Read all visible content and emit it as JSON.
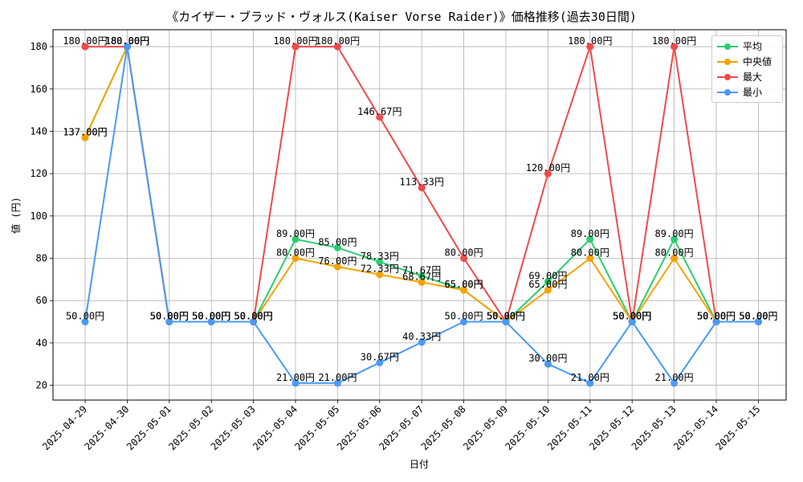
{
  "chart_data": {
    "type": "line",
    "title": "《カイザー・ブラッド・ヴォルス(Kaiser Vorse Raider)》価格推移(過去30日間)",
    "xlabel": "日付",
    "ylabel": "値 (円)",
    "ylim": [
      13,
      188
    ],
    "yticks": [
      20,
      40,
      60,
      80,
      100,
      120,
      140,
      160,
      180
    ],
    "grid": true,
    "legend_position": "top-right",
    "label_suffix": "円",
    "categories": [
      "2025-04-29",
      "2025-04-30",
      "2025-05-01",
      "2025-05-02",
      "2025-05-03",
      "2025-05-04",
      "2025-05-05",
      "2025-05-06",
      "2025-05-07",
      "2025-05-08",
      "2025-05-09",
      "2025-05-10",
      "2025-05-11",
      "2025-05-12",
      "2025-05-13",
      "2025-05-14",
      "2025-05-15"
    ],
    "series": [
      {
        "name": "平均",
        "color": "#2ecc71",
        "values": [
          137.0,
          180.0,
          50.0,
          50.0,
          50.0,
          89.0,
          85.0,
          78.33,
          71.67,
          65.0,
          50.0,
          69.0,
          89.0,
          50.0,
          89.0,
          50.0,
          50.0
        ]
      },
      {
        "name": "中央値",
        "color": "#f5a300",
        "values": [
          137.0,
          180.0,
          50.0,
          50.0,
          50.0,
          80.0,
          76.0,
          72.33,
          68.67,
          65.0,
          50.0,
          65.0,
          80.0,
          50.0,
          80.0,
          50.0,
          50.0
        ]
      },
      {
        "name": "最大",
        "color": "#f04a4a",
        "values": [
          180.0,
          180.0,
          50.0,
          50.0,
          50.0,
          180.0,
          180.0,
          146.67,
          113.33,
          80.0,
          50.0,
          120.0,
          180.0,
          50.0,
          180.0,
          50.0,
          50.0
        ]
      },
      {
        "name": "最小",
        "color": "#4a9af5",
        "values": [
          50.0,
          180.0,
          50.0,
          50.0,
          50.0,
          21.0,
          21.0,
          30.67,
          40.33,
          50.0,
          50.0,
          30.0,
          21.0,
          50.0,
          21.0,
          50.0,
          50.0
        ]
      }
    ]
  }
}
